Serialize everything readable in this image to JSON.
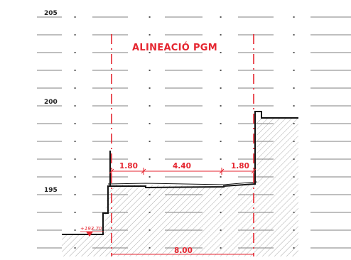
{
  "title": "ALINEACIÓ PGM",
  "levels": {
    "l205": "205",
    "l200": "200",
    "l195": "195"
  },
  "dimensions": {
    "d1": "1.80",
    "d2": "4.40",
    "d3": "1.80",
    "total": "8.00"
  },
  "spot_elevation": "+193.70",
  "colors": {
    "accent": "#e52630",
    "lines": "#111111",
    "grid": "#555555",
    "hatch": "#8a8a8a"
  }
}
